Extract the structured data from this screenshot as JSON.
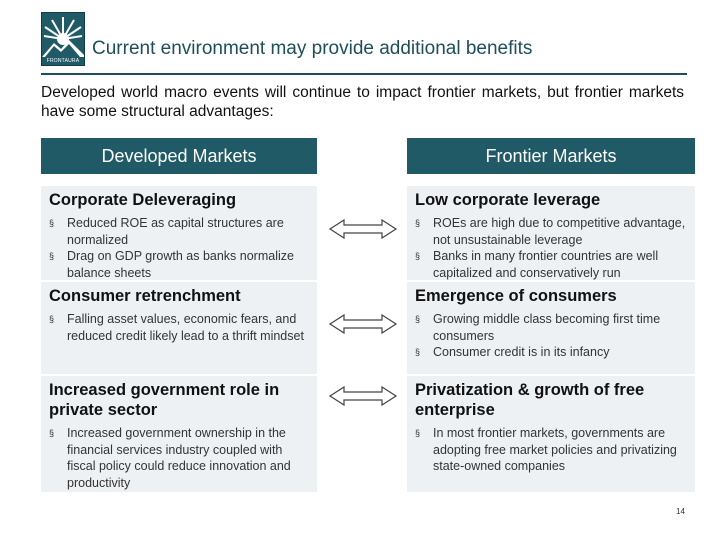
{
  "logo": {
    "text": "FRONTAURA"
  },
  "title": "Current environment may provide additional benefits",
  "intro": "Developed world macro events will continue to impact frontier markets, but frontier markets have some structural advantages:",
  "headers": {
    "left": "Developed Markets",
    "right": "Frontier Markets"
  },
  "rows": [
    {
      "left": {
        "title": "Corporate Deleveraging",
        "bullets": [
          "Reduced ROE as capital structures are normalized",
          "Drag on GDP growth as banks normalize balance sheets"
        ]
      },
      "right": {
        "title": "Low corporate leverage",
        "bullets": [
          "ROEs are high due to competitive advantage, not unsustainable leverage",
          "Banks in many frontier countries are well capitalized and conservatively run"
        ]
      }
    },
    {
      "left": {
        "title": "Consumer retrenchment",
        "bullets": [
          "Falling asset values, economic fears, and reduced credit likely lead to a thrift mindset"
        ]
      },
      "right": {
        "title": "Emergence of consumers",
        "bullets": [
          "Growing middle class becoming first time consumers",
          "Consumer credit is in its infancy"
        ]
      }
    },
    {
      "left": {
        "title": "Increased government role in private sector",
        "bullets": [
          "Increased government ownership in the financial services industry coupled with fiscal policy could reduce innovation and productivity"
        ]
      },
      "right": {
        "title": "Privatization & growth of free enterprise",
        "bullets": [
          "In most frontier markets, governments are adopting free market policies and privatizing state-owned companies"
        ]
      }
    }
  ],
  "bullet_glyph": "§",
  "page_number": "14",
  "colors": {
    "header_bg": "#1f5a66",
    "title": "#1f4e5a",
    "cell_bg": "#eef1f4"
  },
  "icons": {
    "arrow": "double-headed-arrow-icon",
    "logo": "sunburst-mountain-logo"
  }
}
